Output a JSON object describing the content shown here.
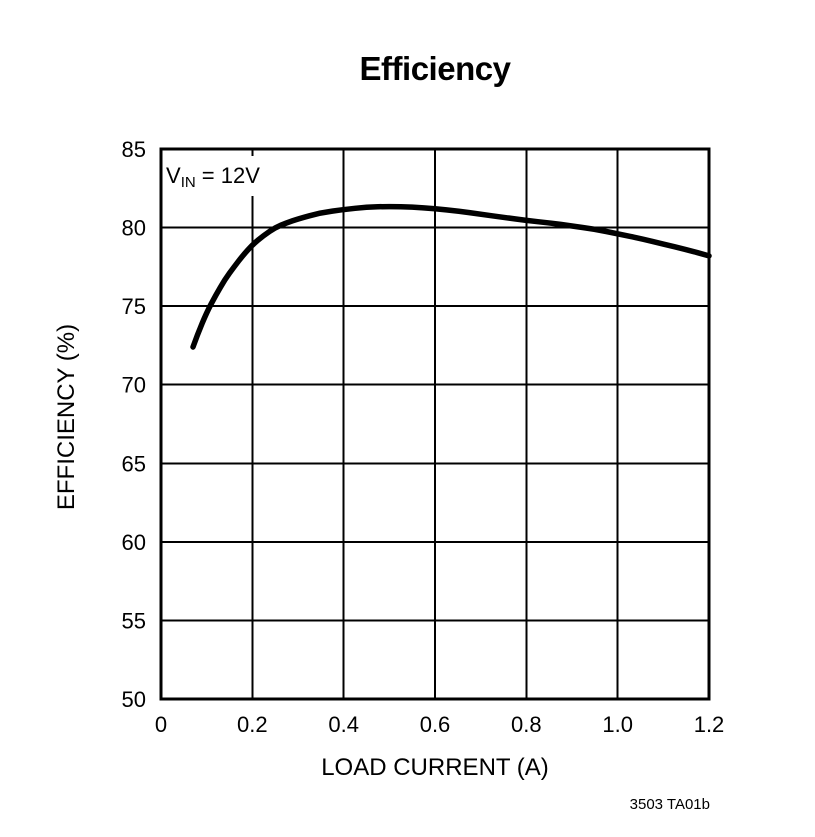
{
  "annotation": {
    "prefix": "V",
    "subscript": "IN",
    "suffix": " = 12V"
  },
  "footnote": "3503 TA01b",
  "colors": {
    "line": "#000000",
    "grid": "#000000",
    "frame": "#000000",
    "text": "#000000",
    "background": "#ffffff"
  },
  "chart_data": {
    "type": "line",
    "title": "Efficiency",
    "xlabel": "LOAD CURRENT (A)",
    "ylabel": "EFFICIENCY (%)",
    "xlim": [
      0,
      1.2
    ],
    "ylim": [
      50,
      85
    ],
    "grid": true,
    "legend": "none",
    "x_ticks": {
      "values": [
        0,
        0.2,
        0.4,
        0.6,
        0.8,
        1.0,
        1.2
      ],
      "labels": [
        "0",
        "0.2",
        "0.4",
        "0.6",
        "0.8",
        "1.0",
        "1.2"
      ]
    },
    "y_ticks": {
      "values": [
        50,
        55,
        60,
        65,
        70,
        75,
        80,
        85
      ],
      "labels": [
        "50",
        "55",
        "60",
        "65",
        "70",
        "75",
        "80",
        "85"
      ]
    },
    "series": [
      {
        "name": "VIN = 12V",
        "color": "#000000",
        "x": [
          0.07,
          0.08,
          0.1,
          0.12,
          0.14,
          0.16,
          0.18,
          0.2,
          0.225,
          0.25,
          0.275,
          0.3,
          0.35,
          0.4,
          0.45,
          0.5,
          0.55,
          0.6,
          0.65,
          0.7,
          0.75,
          0.8,
          0.85,
          0.9,
          0.95,
          1.0,
          1.05,
          1.1,
          1.15,
          1.2
        ],
        "y": [
          72.4,
          73.2,
          74.6,
          75.7,
          76.7,
          77.5,
          78.25,
          78.9,
          79.5,
          80.0,
          80.3,
          80.55,
          80.95,
          81.15,
          81.3,
          81.35,
          81.3,
          81.2,
          81.05,
          80.85,
          80.65,
          80.45,
          80.3,
          80.1,
          79.9,
          79.6,
          79.3,
          78.95,
          78.6,
          78.2
        ]
      }
    ]
  }
}
